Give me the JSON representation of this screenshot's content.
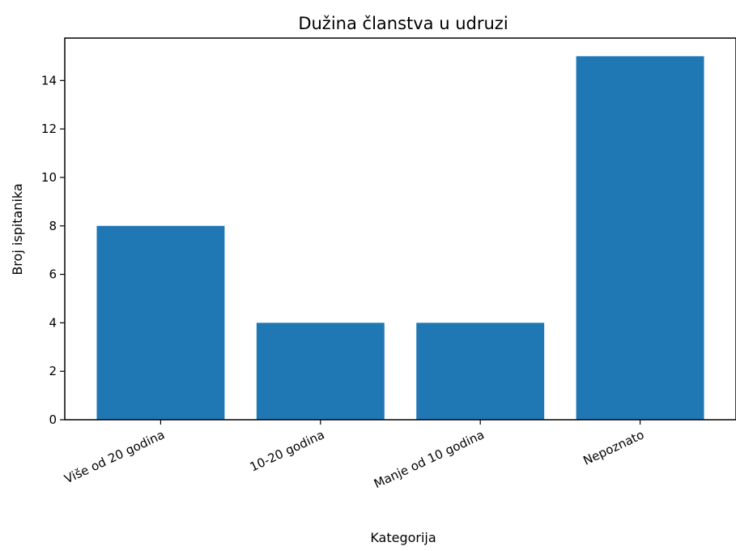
{
  "chart_data": {
    "type": "bar",
    "title": "Dužina članstva u udruzi",
    "xlabel": "Kategorija",
    "ylabel": "Broj ispitanika",
    "categories": [
      "Više od 20 godina",
      "10-20 godina",
      "Manje od 10 godina",
      "Nepoznato"
    ],
    "values": [
      8,
      4,
      4,
      15
    ],
    "ylim": [
      0,
      15.75
    ],
    "yticks": [
      0,
      2,
      4,
      6,
      8,
      10,
      12,
      14
    ],
    "grid": false,
    "bar_color": "#1f77b4"
  }
}
